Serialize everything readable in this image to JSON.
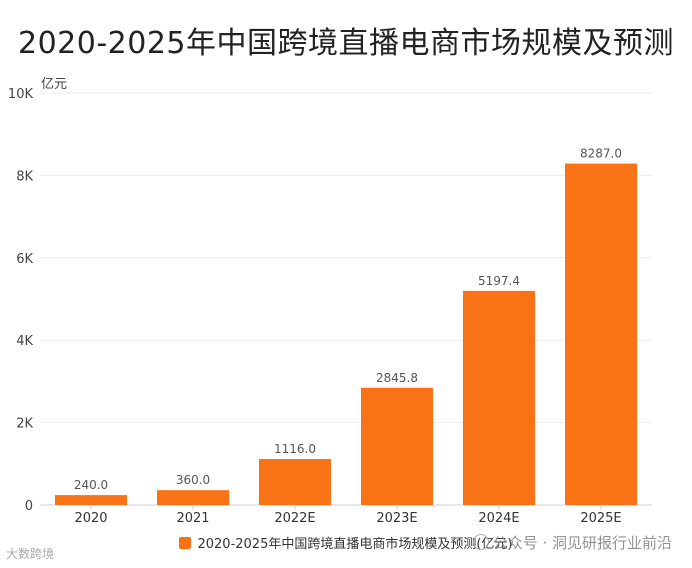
{
  "chart_data": {
    "type": "bar",
    "title": "2020-2025年中国跨境直播电商市场规模及预测",
    "ylabel": "亿元",
    "xlabel": "",
    "categories": [
      "2020",
      "2021",
      "2022E",
      "2023E",
      "2024E",
      "2025E"
    ],
    "values": [
      240.0,
      360.0,
      1116.0,
      2845.8,
      5197.4,
      8287.0
    ],
    "value_labels": [
      "240.0",
      "360.0",
      "1116.0",
      "2845.8",
      "5197.4",
      "8287.0"
    ],
    "ylim": [
      0,
      10000
    ],
    "yticks": [
      0,
      2000,
      4000,
      6000,
      8000,
      10000
    ],
    "ytick_labels": [
      "0",
      "2K",
      "4K",
      "6K",
      "8K",
      "10K"
    ],
    "grid": true,
    "bar_color": "#f97316",
    "legend": "2020-2025年中国跨境直播电商市场规模及预测(亿元)",
    "legend_position": "bottom"
  },
  "watermarks": {
    "left": "大数跨境",
    "right": "公众号 · 洞见研报行业前沿"
  }
}
